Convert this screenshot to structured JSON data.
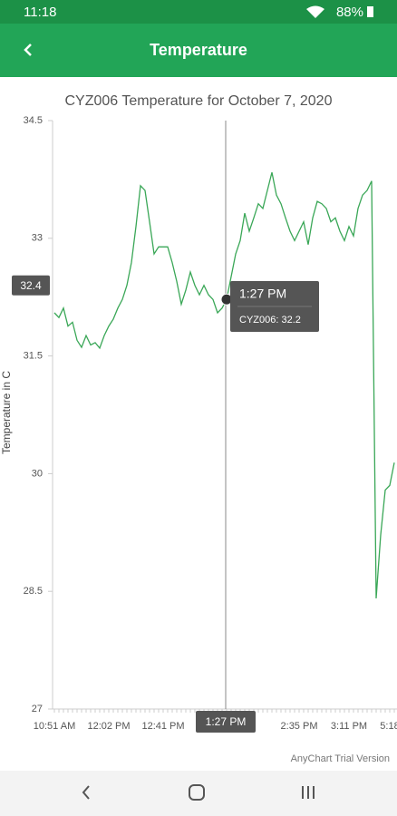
{
  "status_bar": {
    "time": "11:18",
    "battery": "88%"
  },
  "app_bar": {
    "title": "Temperature"
  },
  "chart_data": {
    "type": "line",
    "title": "CYZ006 Temperature for October 7, 2020",
    "y_label": "Temperature in C",
    "ylim": [
      27,
      34.5
    ],
    "yticks": [
      27,
      28.5,
      30,
      31.5,
      33,
      34.5
    ],
    "categories": [
      "10:51 AM",
      null,
      null,
      null,
      null,
      null,
      null,
      null,
      null,
      null,
      null,
      null,
      "12:02 PM",
      null,
      null,
      null,
      null,
      null,
      null,
      null,
      null,
      null,
      null,
      null,
      "12:41 PM",
      null,
      null,
      null,
      null,
      null,
      null,
      null,
      null,
      null,
      null,
      null,
      null,
      null,
      null,
      null,
      null,
      null,
      null,
      null,
      null,
      null,
      null,
      null,
      null,
      null,
      null,
      null,
      null,
      null,
      "2:35 PM",
      null,
      null,
      null,
      null,
      null,
      null,
      null,
      null,
      null,
      null,
      "3:11 PM",
      null,
      null,
      null,
      null,
      null,
      null,
      null,
      null,
      "5:18",
      null
    ],
    "series": [
      {
        "name": "CYZ006",
        "color": "#3aa757",
        "values": [
          32.05,
          31.99,
          32.11,
          31.88,
          31.93,
          31.7,
          31.61,
          31.76,
          31.64,
          31.67,
          31.6,
          31.76,
          31.88,
          31.97,
          32.11,
          32.22,
          32.4,
          32.69,
          33.15,
          33.67,
          33.61,
          33.21,
          32.8,
          32.89,
          32.89,
          32.89,
          32.69,
          32.45,
          32.16,
          32.34,
          32.57,
          32.4,
          32.28,
          32.4,
          32.28,
          32.22,
          32.05,
          32.11,
          32.22,
          32.51,
          32.8,
          32.97,
          33.32,
          33.09,
          33.26,
          33.44,
          33.38,
          33.61,
          33.84,
          33.55,
          33.44,
          33.26,
          33.09,
          32.97,
          33.09,
          33.21,
          32.92,
          33.26,
          33.47,
          33.44,
          33.38,
          33.21,
          33.26,
          33.09,
          32.97,
          33.15,
          33.03,
          33.38,
          33.55,
          33.61,
          33.73,
          28.41,
          29.22,
          29.79,
          29.85,
          30.14
        ]
      }
    ],
    "crosshair": {
      "x_label": "1:27 PM",
      "y_value": 32.4
    },
    "tooltip": {
      "time": "1:27 PM",
      "text": "CYZ006: 32.2"
    }
  },
  "watermark": "AnyChart Trial Version"
}
